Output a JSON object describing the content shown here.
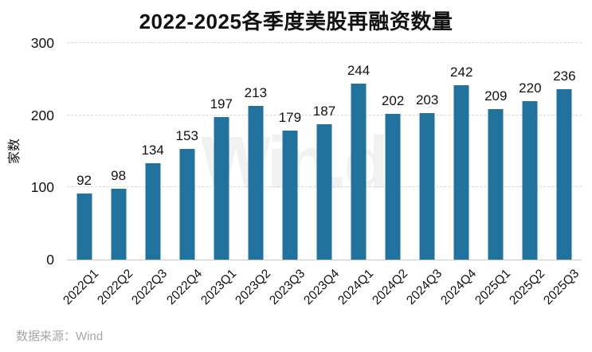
{
  "chart_data": {
    "type": "bar",
    "title": "2022-2025各季度美股再融资数量",
    "xlabel": "",
    "ylabel": "家数",
    "categories": [
      "2022Q1",
      "2022Q2",
      "2022Q3",
      "2022Q4",
      "2023Q1",
      "2023Q2",
      "2023Q3",
      "2023Q4",
      "2024Q1",
      "2024Q2",
      "2024Q3",
      "2024Q4",
      "2025Q1",
      "2025Q2",
      "2025Q3"
    ],
    "values": [
      92,
      98,
      134,
      153,
      197,
      213,
      179,
      187,
      244,
      202,
      203,
      242,
      209,
      220,
      236
    ],
    "ylim": [
      0,
      300
    ],
    "yticks": [
      0,
      100,
      200,
      300
    ],
    "bar_color": "#21739E",
    "grid": "horizontal-dashed",
    "legend": "none",
    "data_labels": true
  },
  "watermark": {
    "text": "Win.d"
  },
  "footer": {
    "source_label": "数据来源：Wind"
  }
}
